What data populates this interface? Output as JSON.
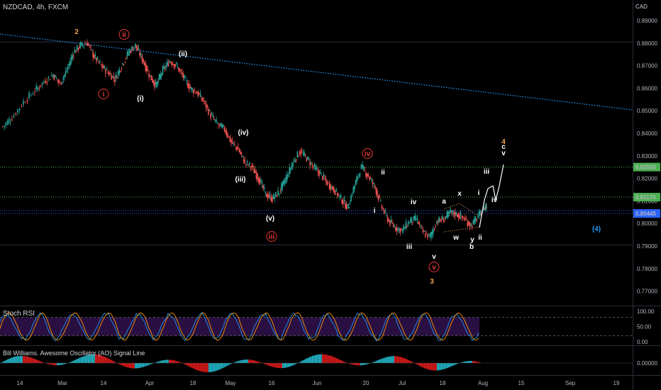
{
  "header": {
    "symbol_label": "NZDCAD, 4h, FXCM",
    "currency": "CAD"
  },
  "chart_data": [
    {
      "type": "candlestick",
      "title": "NZDCAD, 4h, FXCM",
      "x_tick_labels": [
        "14",
        "Mar",
        "14",
        "Apr",
        "18",
        "May",
        "16",
        "Jun",
        "20",
        "Jul",
        "18",
        "Aug",
        "15",
        "Sep",
        "19"
      ],
      "y_tick_labels": [
        "0.89000",
        "0.88000",
        "0.87000",
        "0.86000",
        "0.85000",
        "0.84000",
        "0.83000",
        "0.82000",
        "0.81000",
        "0.80000",
        "0.79000",
        "0.78000",
        "0.77000"
      ],
      "ylim": [
        0.7655,
        0.8986
      ],
      "grid": false,
      "approx_close_path": [
        [
          0,
          0.843
        ],
        [
          0.04,
          0.847
        ],
        [
          0.09,
          0.854
        ],
        [
          0.14,
          0.859
        ],
        [
          0.18,
          0.863
        ],
        [
          0.22,
          0.866
        ],
        [
          0.25,
          0.862
        ],
        [
          0.28,
          0.868
        ],
        [
          0.31,
          0.876
        ],
        [
          0.34,
          0.879
        ],
        [
          0.37,
          0.88
        ],
        [
          0.4,
          0.874
        ],
        [
          0.43,
          0.87
        ],
        [
          0.46,
          0.867
        ],
        [
          0.49,
          0.864
        ],
        [
          0.52,
          0.87
        ],
        [
          0.55,
          0.876
        ],
        [
          0.58,
          0.879
        ],
        [
          0.61,
          0.873
        ],
        [
          0.64,
          0.866
        ],
        [
          0.67,
          0.861
        ],
        [
          0.7,
          0.868
        ],
        [
          0.73,
          0.872
        ],
        [
          0.76,
          0.87
        ],
        [
          0.79,
          0.865
        ],
        [
          0.82,
          0.86
        ],
        [
          0.85,
          0.858
        ],
        [
          0.88,
          0.854
        ],
        [
          0.91,
          0.848
        ],
        [
          0.94,
          0.844
        ],
        [
          0.97,
          0.842
        ],
        [
          1.0,
          0.836
        ],
        [
          1.03,
          0.833
        ],
        [
          1.06,
          0.827
        ],
        [
          1.09,
          0.825
        ],
        [
          1.12,
          0.82
        ],
        [
          1.15,
          0.813
        ],
        [
          1.18,
          0.811
        ],
        [
          1.21,
          0.814
        ],
        [
          1.24,
          0.82
        ],
        [
          1.27,
          0.827
        ],
        [
          1.3,
          0.832
        ],
        [
          1.33,
          0.829
        ],
        [
          1.36,
          0.825
        ],
        [
          1.39,
          0.822
        ],
        [
          1.42,
          0.818
        ],
        [
          1.45,
          0.815
        ],
        [
          1.48,
          0.811
        ],
        [
          1.51,
          0.807
        ],
        [
          1.54,
          0.817
        ],
        [
          1.57,
          0.825
        ],
        [
          1.6,
          0.821
        ],
        [
          1.63,
          0.816
        ],
        [
          1.66,
          0.807
        ],
        [
          1.69,
          0.801
        ],
        [
          1.72,
          0.798
        ],
        [
          1.75,
          0.797
        ],
        [
          1.78,
          0.801
        ],
        [
          1.81,
          0.802
        ],
        [
          1.84,
          0.796
        ],
        [
          1.87,
          0.794
        ],
        [
          1.9,
          0.801
        ],
        [
          1.93,
          0.802
        ],
        [
          1.96,
          0.805
        ],
        [
          1.99,
          0.804
        ],
        [
          2.02,
          0.802
        ],
        [
          2.05,
          0.799
        ],
        [
          2.08,
          0.803
        ],
        [
          2.11,
          0.807
        ],
        [
          2.12,
          0.808
        ]
      ],
      "last_price": "0.80445",
      "horizontal_levels": [
        {
          "value": 0.82503,
          "label": "0.82503",
          "color": "#4caf50",
          "style": "dotted"
        },
        {
          "value": 0.8117,
          "label": "0.81170",
          "color": "#4caf50",
          "style": "dotted"
        },
        {
          "value": 0.80445,
          "label": "0.80445",
          "color": "#2962ff",
          "style": "dotted"
        }
      ],
      "trendline": {
        "color": "#2196f3",
        "style": "dotted"
      },
      "wave_labels": [
        {
          "text": "2",
          "color": "#f0a050"
        },
        {
          "text": "ii",
          "color": "#e53935",
          "circled": true
        },
        {
          "text": "i",
          "color": "#e53935",
          "circled": true
        },
        {
          "text": "(i)",
          "color": "#ffffff"
        },
        {
          "text": "(ii)",
          "color": "#ffffff"
        },
        {
          "text": "(iv)",
          "color": "#ffffff"
        },
        {
          "text": "(iii)",
          "color": "#ffffff"
        },
        {
          "text": "(v)",
          "color": "#ffffff"
        },
        {
          "text": "iii",
          "color": "#e53935",
          "circled": true
        },
        {
          "text": "iv",
          "color": "#e53935",
          "circled": true
        },
        {
          "text": "ii",
          "color": "#ffffff"
        },
        {
          "text": "i",
          "color": "#ffffff"
        },
        {
          "text": "iv",
          "color": "#ffffff"
        },
        {
          "text": "iii",
          "color": "#ffffff"
        },
        {
          "text": "v",
          "color": "#ffffff"
        },
        {
          "text": "v",
          "color": "#e53935",
          "circled": true
        },
        {
          "text": "3",
          "color": "#f0a050"
        },
        {
          "text": "a",
          "color": "#ffffff"
        },
        {
          "text": "x",
          "color": "#ffffff"
        },
        {
          "text": "w",
          "color": "#ffffff"
        },
        {
          "text": "y",
          "color": "#ffffff"
        },
        {
          "text": "b",
          "color": "#ffffff"
        },
        {
          "text": "i",
          "color": "#ffffff"
        },
        {
          "text": "ii",
          "color": "#ffffff"
        },
        {
          "text": "iii",
          "color": "#ffffff"
        },
        {
          "text": "iv",
          "color": "#ffffff"
        },
        {
          "text": "4",
          "color": "#f0a050"
        },
        {
          "text": "c",
          "color": "#ffffff"
        },
        {
          "text": "v",
          "color": "#ffffff"
        },
        {
          "text": "(4)",
          "color": "#2196f3"
        }
      ]
    },
    {
      "type": "line",
      "title": "Stoch RSI",
      "y_tick_labels": [
        "100.00",
        "50.00",
        "0.00"
      ],
      "ylim": [
        0,
        100
      ],
      "band": [
        20,
        80
      ],
      "series": [
        {
          "color": "#2196f3"
        },
        {
          "color": "#ff9800"
        }
      ]
    },
    {
      "type": "bar",
      "title": "Bill Williams. Awesome Oscillator (AO) Signal Line",
      "y_tick_labels": [
        "0.00000"
      ],
      "colors": {
        "up": "#26c6da",
        "down": "#ef1c1c"
      }
    }
  ]
}
